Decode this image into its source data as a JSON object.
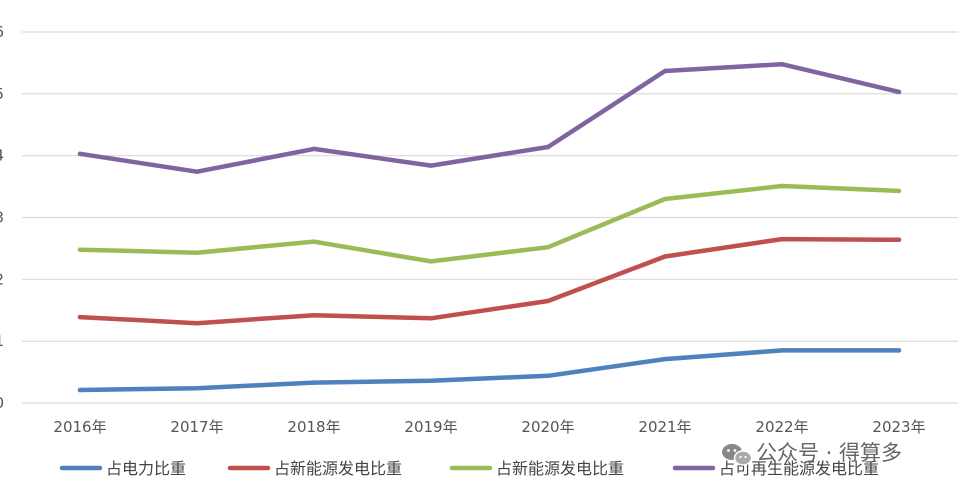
{
  "chart_data": {
    "type": "line",
    "title": "",
    "xlabel": "",
    "ylabel": "",
    "categories": [
      "2016年",
      "2017年",
      "2018年",
      "2019年",
      "2020年",
      "2021年",
      "2022年",
      "2023年"
    ],
    "ylim": [
      0,
      6
    ],
    "grid": true,
    "legend_position": "bottom",
    "series": [
      {
        "name": "占电力比重",
        "color": "#4F81BD",
        "values": [
          0.21,
          0.24,
          0.33,
          0.36,
          0.44,
          0.71,
          0.85,
          0.85
        ]
      },
      {
        "name": "占新能源发电比重",
        "color": "#C0504D",
        "values": [
          1.39,
          1.29,
          1.42,
          1.37,
          1.65,
          2.37,
          2.65,
          2.64
        ]
      },
      {
        "name": "占新能源发电比重",
        "color": "#9BBB59",
        "values": [
          2.48,
          2.43,
          2.61,
          2.29,
          2.52,
          3.3,
          3.51,
          3.43
        ]
      },
      {
        "name": "占可再生能源发电比重",
        "color": "#8064A2",
        "values": [
          4.03,
          3.74,
          4.11,
          3.84,
          4.14,
          5.37,
          5.48,
          5.03
        ]
      }
    ]
  },
  "watermark": {
    "text": "公众号 · 得算多",
    "icon": "wechat-icon"
  }
}
